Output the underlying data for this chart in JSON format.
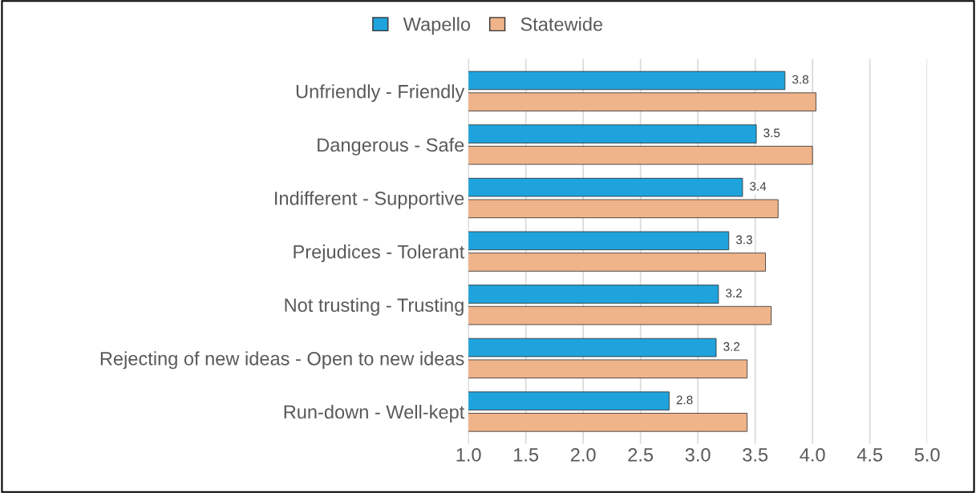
{
  "chart_data": {
    "type": "bar",
    "orientation": "horizontal",
    "categories": [
      "Unfriendly - Friendly",
      "Dangerous - Safe",
      "Indifferent - Supportive",
      "Prejudices - Tolerant",
      "Not trusting - Trusting",
      "Rejecting of new ideas - Open to new ideas",
      "Run-down - Well-kept"
    ],
    "series": [
      {
        "name": "Wapello",
        "color": "#1fa3dc",
        "values": [
          3.76,
          3.51,
          3.39,
          3.27,
          3.18,
          3.16,
          2.75
        ],
        "value_labels": [
          "3.8",
          "3.5",
          "3.4",
          "3.3",
          "3.2",
          "3.2",
          "2.8"
        ]
      },
      {
        "name": "Statewide",
        "color": "#f0b48a",
        "values": [
          4.03,
          4.0,
          3.7,
          3.59,
          3.64,
          3.43,
          3.43
        ]
      }
    ],
    "xlim": [
      1.0,
      5.0
    ],
    "xticks": [
      {
        "value": 1.0,
        "label": "1.0"
      },
      {
        "value": 1.5,
        "label": "1.5"
      },
      {
        "value": 2.0,
        "label": "2.0"
      },
      {
        "value": 2.5,
        "label": "2.5"
      },
      {
        "value": 3.0,
        "label": "3.0"
      },
      {
        "value": 3.5,
        "label": "3.5"
      },
      {
        "value": 4.0,
        "label": "4.0"
      },
      {
        "value": 4.5,
        "label": "4.5"
      },
      {
        "value": 5.0,
        "label": "5.0"
      }
    ],
    "grid": "x",
    "legend": "top"
  }
}
